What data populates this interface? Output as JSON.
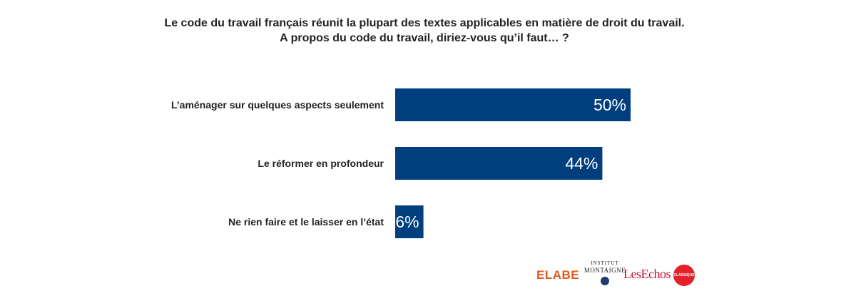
{
  "title": {
    "line1": "Le code du travail français réunit la plupart des textes applicables en matière de droit du travail.",
    "line2": "A propos du code du travail, diriez-vous qu’il faut… ?"
  },
  "chart_data": {
    "type": "bar",
    "orientation": "horizontal",
    "categories": [
      "L’aménager sur quelques aspects seulement",
      "Le réformer en profondeur",
      "Ne rien faire et le laisser en l’état"
    ],
    "values": [
      50,
      44,
      6
    ],
    "value_labels": [
      "50%",
      "44%",
      "6%"
    ],
    "unit": "%",
    "bar_color": "#003e7e",
    "grid": false,
    "legend": "none"
  },
  "logos": {
    "elabe": "ELABE",
    "institut_line1": "INSTITUT",
    "institut_line2": "MONTAIGNE",
    "lesechos": "LesEchos",
    "classique": "CLASSIQUE"
  }
}
